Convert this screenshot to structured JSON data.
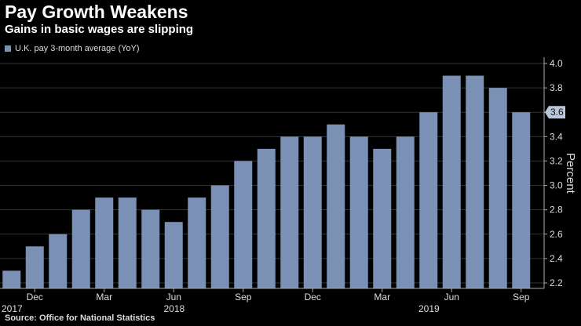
{
  "chart_data": {
    "type": "bar",
    "title": "Pay Growth Weakens",
    "subtitle": "Gains in basic wages are slipping",
    "legend": [
      "U.K. pay 3-month average (YoY)"
    ],
    "ylabel": "Percent",
    "xlabel": "",
    "ylim": [
      2.2,
      4.0
    ],
    "yticks": [
      "2.2",
      "2.4",
      "2.6",
      "2.8",
      "3.0",
      "3.2",
      "3.4",
      "3.6",
      "3.8",
      "4.0"
    ],
    "categories": [
      "2017-Nov",
      "2017-Dec",
      "2018-Jan",
      "2018-Feb",
      "2018-Mar",
      "2018-Apr",
      "2018-May",
      "2018-Jun",
      "2018-Jul",
      "2018-Aug",
      "2018-Sep",
      "2018-Oct",
      "2018-Nov",
      "2018-Dec",
      "2019-Jan",
      "2019-Feb",
      "2019-Mar",
      "2019-Apr",
      "2019-May",
      "2019-Jun",
      "2019-Jul",
      "2019-Aug",
      "2019-Sep"
    ],
    "values": [
      2.3,
      2.5,
      2.6,
      2.8,
      2.9,
      2.9,
      2.8,
      2.7,
      2.9,
      3.0,
      3.2,
      3.3,
      3.4,
      3.4,
      3.5,
      3.4,
      3.3,
      3.4,
      3.6,
      3.9,
      3.9,
      3.8,
      3.6
    ],
    "month_ticks": [
      {
        "index": 1,
        "label": "Dec"
      },
      {
        "index": 4,
        "label": "Mar"
      },
      {
        "index": 7,
        "label": "Jun"
      },
      {
        "index": 10,
        "label": "Sep"
      },
      {
        "index": 13,
        "label": "Dec"
      },
      {
        "index": 16,
        "label": "Mar"
      },
      {
        "index": 19,
        "label": "Jun"
      },
      {
        "index": 22,
        "label": "Sep"
      }
    ],
    "year_labels": [
      {
        "index": 0,
        "label": "2017"
      },
      {
        "index": 7,
        "label": "2018"
      },
      {
        "index": 18,
        "label": "2019"
      }
    ],
    "last_value_label": "3.6",
    "source": "Source: Office for National Statistics"
  },
  "colors": {
    "bar": "#7a90b5",
    "background": "#000000",
    "grid": "#333333"
  }
}
